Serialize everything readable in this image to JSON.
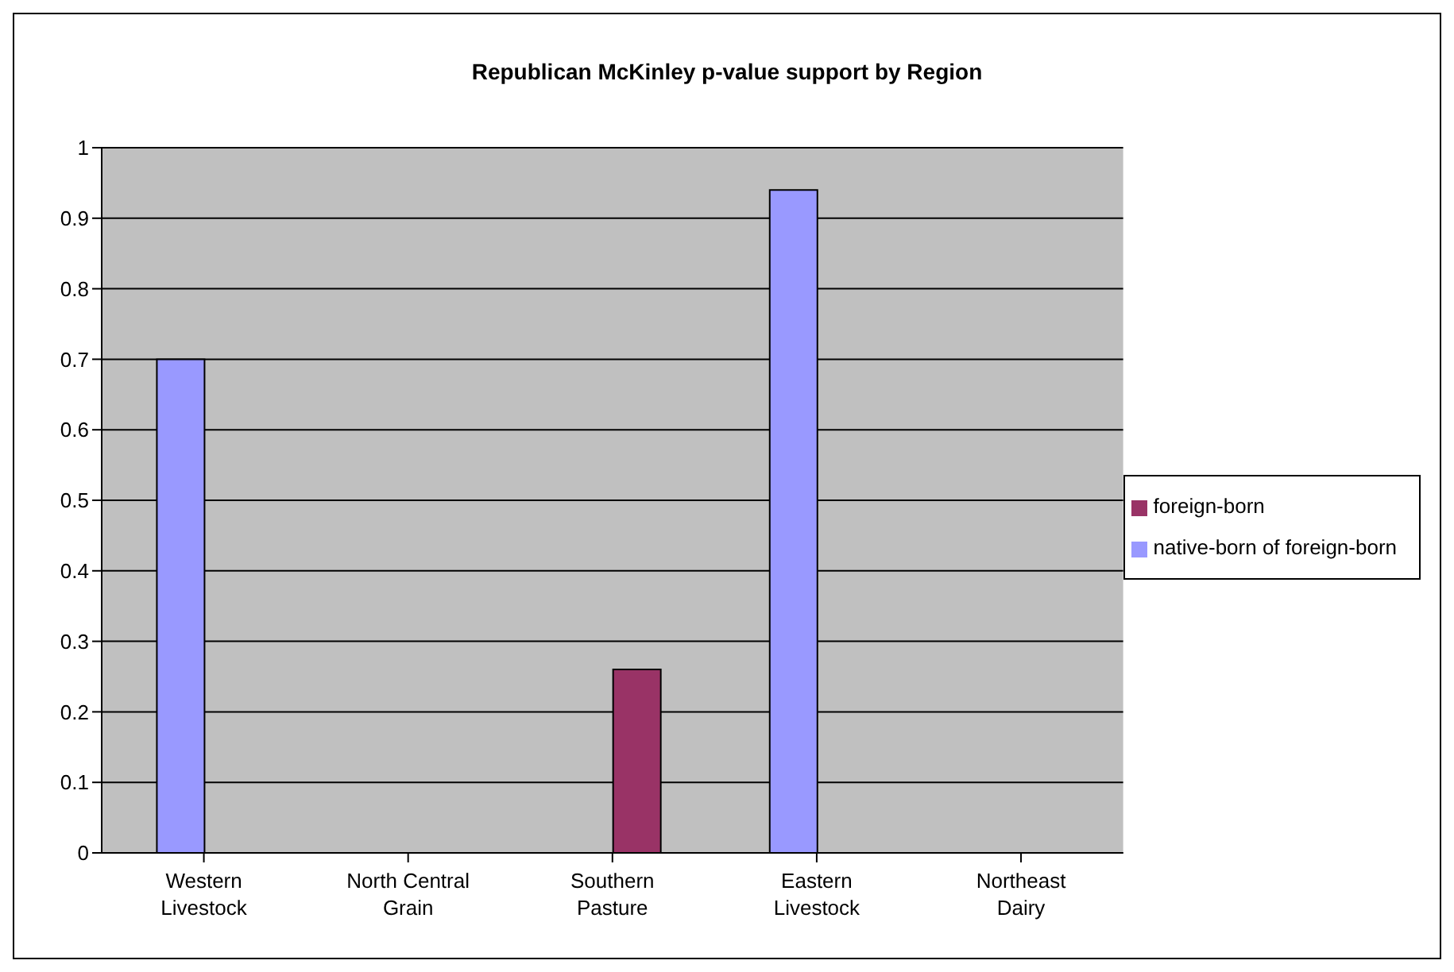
{
  "chart_data": {
    "type": "bar",
    "title": "Republican McKinley p-value support by Region",
    "categories": [
      "Western Livestock",
      "North Central Grain",
      "Southern Pasture",
      "Eastern Livestock",
      "Northeast Dairy"
    ],
    "series": [
      {
        "name": "native-born of foreign-born",
        "color": "#9999ff",
        "values": [
          0.7,
          null,
          null,
          0.94,
          null
        ]
      },
      {
        "name": "foreign-born",
        "color": "#993366",
        "values": [
          null,
          null,
          0.26,
          null,
          null
        ]
      }
    ],
    "ylim": [
      0,
      1
    ],
    "yticks": [
      0,
      0.1,
      0.2,
      0.3,
      0.4,
      0.5,
      0.6,
      0.7,
      0.8,
      0.9,
      1
    ],
    "grid": "y",
    "legend": "right"
  }
}
